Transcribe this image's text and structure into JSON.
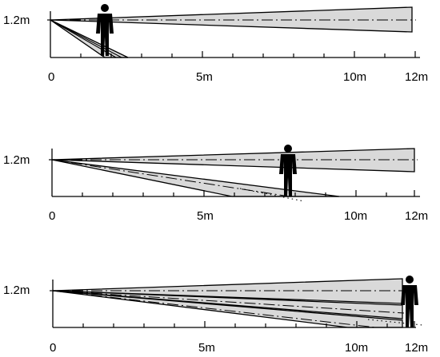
{
  "colors": {
    "beam_fill": "#d9d9d9",
    "line": "#000000",
    "person": "#000000"
  },
  "panels": [
    {
      "height_label": "1.2m",
      "tick_labels": [
        "0",
        "5m",
        "10m",
        "12m"
      ],
      "person_distance_m": 1.7,
      "beams": [
        {
          "near_height_m": 1.2,
          "far_distance_m": 12,
          "far_top_m": 1.43,
          "far_bottom_m": 0.97,
          "far_center_m": 1.2,
          "kind": "band"
        },
        {
          "kind": "lines",
          "ground_distances_m": [
            1.8,
            2.1,
            2.45
          ],
          "center_ground_m": 2.1
        }
      ]
    },
    {
      "height_label": "1.2m",
      "tick_labels": [
        "0",
        "5m",
        "10m",
        "12m"
      ],
      "person_distance_m": 7.7,
      "beams": [
        {
          "kind": "band",
          "far_distance_m": 12,
          "far_top_m": 1.5,
          "far_bottom_m": 0.9,
          "far_center_m": 1.2
        },
        {
          "kind": "ground",
          "ground_left_m": 6.0,
          "ground_right_m": 9.4,
          "center_ground_m": 7.9,
          "dot_ground_m": 8.2
        }
      ]
    },
    {
      "height_label": "1.2m",
      "tick_labels": [
        "0",
        "5m",
        "10m",
        "12m"
      ],
      "person_distance_m": 11.7,
      "beams": [
        {
          "kind": "band",
          "far_distance_m": 11.7,
          "far_top_m": 1.6,
          "far_bottom_m": 1.2,
          "far_center_m": 1.4
        },
        {
          "kind": "band",
          "far_distance_m": 11.7,
          "far_top_m": 0.9,
          "far_bottom_m": 0.4,
          "far_center_m": 0.6
        },
        {
          "kind": "ground",
          "ground_left_m": 9.6,
          "ground_right_m": 11.7,
          "center_ground_m": 11.0,
          "dot_ground_m": 12.2
        }
      ]
    }
  ]
}
